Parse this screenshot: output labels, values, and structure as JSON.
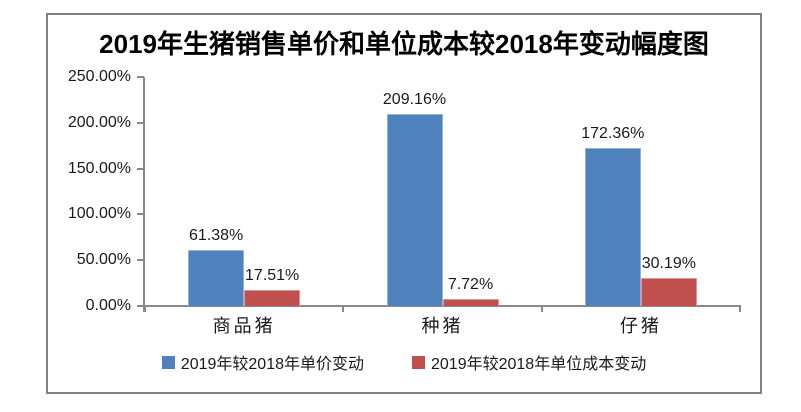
{
  "frame": {
    "border_color": "#808080",
    "background": "#ffffff"
  },
  "chart_data": {
    "type": "bar",
    "title": "2019年生猪销售单价和单位成本较2018年变动幅度图",
    "categories": [
      "商品猪",
      "种猪",
      "仔猪"
    ],
    "series": [
      {
        "key": "unit-price-change",
        "name": "2019年较2018年单价变动",
        "color": "#4F81BD",
        "border_color": "#95B3D7",
        "values": [
          61.38,
          209.16,
          172.36
        ],
        "data_labels": [
          "61.38%",
          "209.16%",
          "172.36%"
        ]
      },
      {
        "key": "unit-cost-change",
        "name": "2019年较2018年单位成本变动",
        "color": "#C0504D",
        "border_color": "#D99694",
        "values": [
          17.51,
          7.72,
          30.19
        ],
        "data_labels": [
          "17.51%",
          "7.72%",
          "30.19%"
        ]
      }
    ],
    "ylim": [
      0,
      250
    ],
    "ytick_step": 50,
    "ytick_labels": [
      "0.00%",
      "50.00%",
      "100.00%",
      "150.00%",
      "200.00%",
      "250.00%"
    ],
    "grid": false,
    "legend_position": "bottom",
    "axis_color": "#898989",
    "text_color": "#1a1a1a"
  }
}
